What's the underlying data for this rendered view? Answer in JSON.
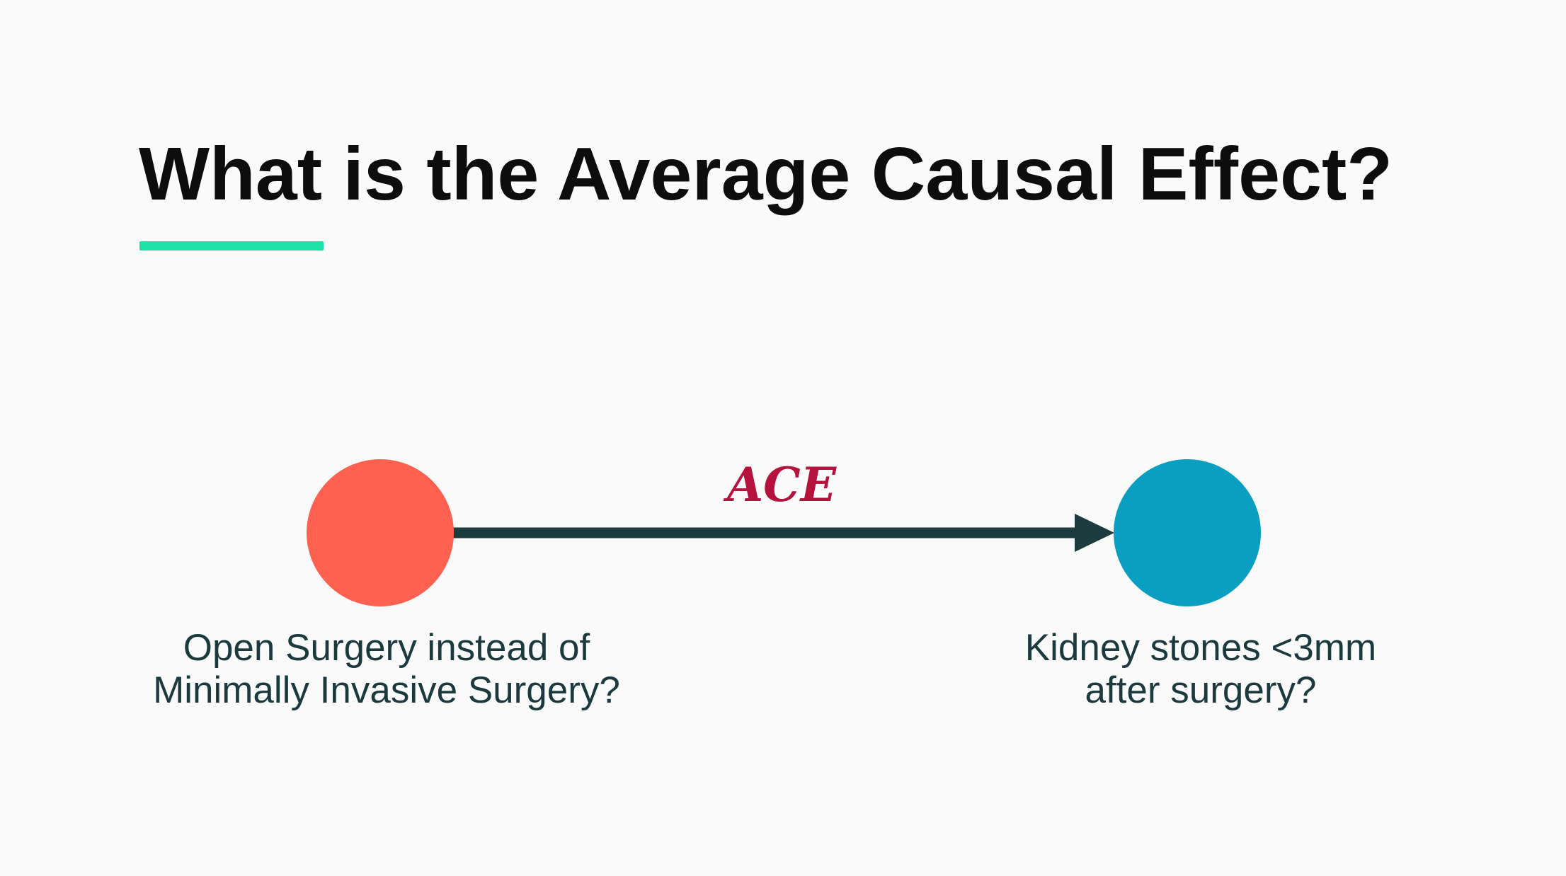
{
  "slide": {
    "title": "What is the Average Causal Effect?"
  },
  "colors": {
    "accent_underline": "#1de2a6",
    "treatment_node": "#ff6150",
    "outcome_node": "#0a9ec0",
    "arrow": "#1b3b3e",
    "edge_label": "#b5123d",
    "node_label_text": "#1c3a3d"
  },
  "diagram": {
    "nodes": [
      {
        "id": "treatment",
        "label_lines": [
          "Open Surgery instead of",
          "Minimally Invasive Surgery?"
        ]
      },
      {
        "id": "outcome",
        "label_lines": [
          "Kidney stones <3mm",
          "after surgery?"
        ]
      }
    ],
    "edges": [
      {
        "from": "treatment",
        "to": "outcome",
        "label": "ACE"
      }
    ]
  }
}
